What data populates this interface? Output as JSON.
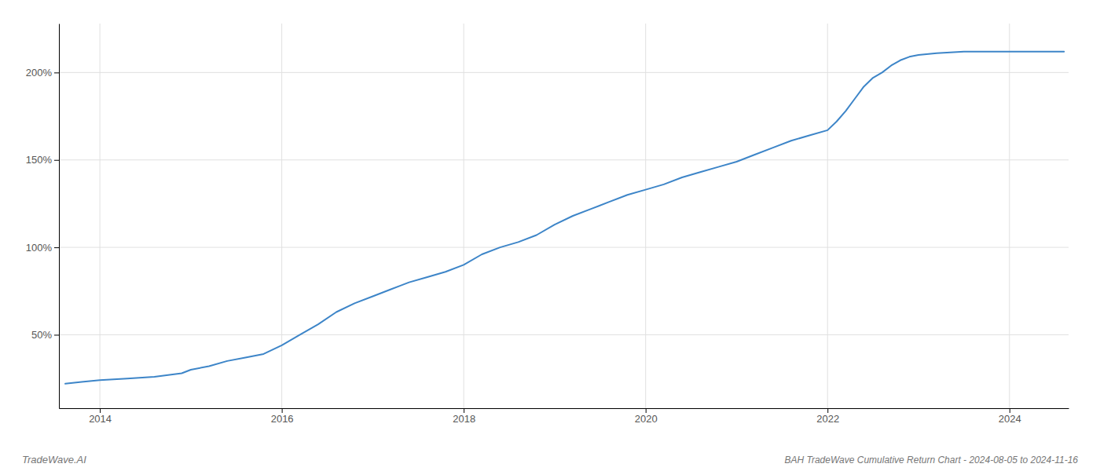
{
  "chart_data": {
    "type": "line",
    "title": "BAH TradeWave Cumulative Return Chart - 2024-08-05 to 2024-11-16",
    "annotations": [
      "TradeWave.AI"
    ],
    "color": "#3d85c8",
    "grid": true,
    "xlim": [
      2013.55,
      2024.65
    ],
    "xticks": [
      2014,
      2016,
      2018,
      2020,
      2022,
      2024
    ],
    "ylim": [
      8,
      228
    ],
    "yticks": [
      {
        "value": 50,
        "label": "50%"
      },
      {
        "value": 100,
        "label": "100%"
      },
      {
        "value": 150,
        "label": "150%"
      },
      {
        "value": 200,
        "label": "200%"
      }
    ],
    "x": [
      2013.62,
      2013.8,
      2014.0,
      2014.3,
      2014.6,
      2014.9,
      2015.0,
      2015.2,
      2015.4,
      2015.6,
      2015.8,
      2016.0,
      2016.2,
      2016.4,
      2016.6,
      2016.8,
      2017.0,
      2017.2,
      2017.4,
      2017.6,
      2017.8,
      2018.0,
      2018.2,
      2018.4,
      2018.6,
      2018.8,
      2019.0,
      2019.2,
      2019.4,
      2019.6,
      2019.8,
      2020.0,
      2020.2,
      2020.4,
      2020.6,
      2020.8,
      2021.0,
      2021.2,
      2021.4,
      2021.6,
      2021.8,
      2022.0,
      2022.1,
      2022.2,
      2022.3,
      2022.4,
      2022.5,
      2022.6,
      2022.7,
      2022.8,
      2022.9,
      2023.0,
      2023.2,
      2023.5,
      2023.8,
      2024.0,
      2024.2,
      2024.4,
      2024.6
    ],
    "values": [
      22,
      23,
      24,
      25,
      26,
      28,
      30,
      32,
      35,
      37,
      39,
      44,
      50,
      56,
      63,
      68,
      72,
      76,
      80,
      83,
      86,
      90,
      96,
      100,
      103,
      107,
      113,
      118,
      122,
      126,
      130,
      133,
      136,
      140,
      143,
      146,
      149,
      153,
      157,
      161,
      164,
      167,
      172,
      178,
      185,
      192,
      197,
      200,
      204,
      207,
      209,
      210,
      211,
      212,
      212,
      212,
      212,
      212,
      212
    ]
  }
}
